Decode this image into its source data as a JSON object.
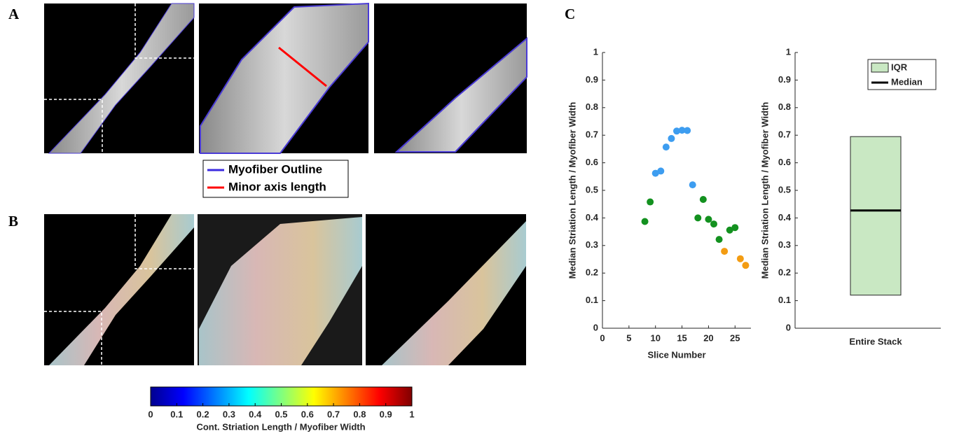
{
  "panel_labels": [
    "A",
    "B",
    "C"
  ],
  "outline_legend": {
    "outline": "Myofiber Outline",
    "minor_axis": "Minor axis length"
  },
  "colorbar": {
    "label": "Cont. Striation Length / Myofiber Width",
    "lim": [
      0,
      1
    ],
    "ticks": [
      0,
      0.1,
      0.2,
      0.3,
      0.4,
      0.5,
      0.6,
      0.7,
      0.8,
      0.9,
      1
    ]
  },
  "chart_data": [
    {
      "type": "scatter",
      "xlabel": "Slice Number",
      "ylabel": "Median Striation Length / Myofiber Width",
      "xlim": [
        0,
        28
      ],
      "xticks": [
        0,
        5,
        10,
        15,
        20,
        25
      ],
      "ylim": [
        0,
        1
      ],
      "yticks": [
        0,
        0.1,
        0.2,
        0.3,
        0.4,
        0.5,
        0.6,
        0.7,
        0.8,
        0.9,
        1
      ],
      "series": [
        {
          "color": "#3d9df0",
          "x": [
            10,
            11,
            12,
            13,
            14,
            15,
            16,
            17
          ],
          "values": [
            0.562,
            0.57,
            0.657,
            0.688,
            0.715,
            0.718,
            0.717,
            0.52
          ]
        },
        {
          "color": "#13911f",
          "x": [
            8,
            9,
            18,
            19,
            20,
            21,
            22,
            24,
            25
          ],
          "values": [
            0.387,
            0.458,
            0.4,
            0.467,
            0.395,
            0.378,
            0.322,
            0.356,
            0.365
          ]
        },
        {
          "color": "#f39c12",
          "x": [
            23,
            26,
            27
          ],
          "values": [
            0.279,
            0.252,
            0.228
          ]
        }
      ]
    },
    {
      "type": "box",
      "ylabel": "Median Striation Length / Myofiber Width",
      "categories": [
        "Entire Stack"
      ],
      "ylim": [
        0,
        1
      ],
      "yticks": [
        0,
        0.1,
        0.2,
        0.3,
        0.4,
        0.5,
        0.6,
        0.7,
        0.8,
        0.9,
        1
      ],
      "q1": 0.12,
      "median": 0.427,
      "q3": 0.695,
      "iqr_label": "IQR",
      "median_label": "Median",
      "color": "#c9e8c3",
      "median_color": "#000000"
    }
  ]
}
